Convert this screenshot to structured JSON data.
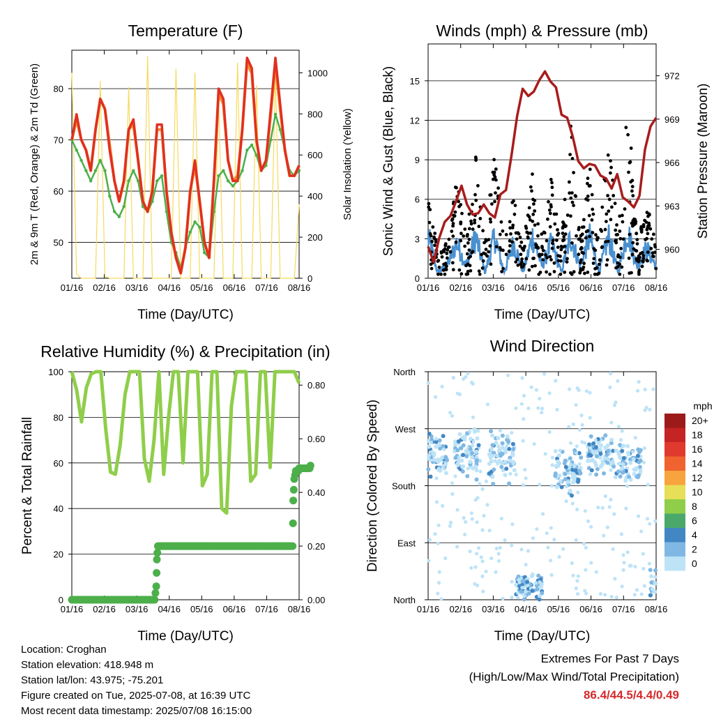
{
  "chart_data": [
    {
      "type": "line",
      "title": "Temperature (F)",
      "xlabel": "Time (Day/UTC)",
      "ylabel": "2m & 9m T (Red, Orange) & 2m Td (Green)",
      "y2label": "Solar Insolation (Yellow)",
      "x_ticks": [
        "01/16",
        "02/16",
        "03/16",
        "04/16",
        "05/16",
        "06/16",
        "07/16",
        "08/16"
      ],
      "y_ticks": [
        50,
        60,
        70,
        80
      ],
      "y2_ticks": [
        0,
        200,
        400,
        600,
        800,
        1000
      ],
      "ylim": [
        43,
        87.5
      ],
      "y2lim": [
        0,
        1110
      ],
      "grid": true,
      "series": [
        {
          "color": "#e03020",
          "values": [
            70,
            75,
            70,
            68,
            64,
            72,
            78,
            76,
            68,
            62,
            58,
            62,
            72,
            74,
            66,
            58,
            56,
            60,
            73,
            73,
            60,
            52,
            47,
            44,
            49,
            60,
            66,
            58,
            50,
            47,
            62,
            80,
            78,
            66,
            62,
            62,
            72,
            86,
            84,
            70,
            64,
            66,
            76,
            86,
            77,
            68,
            63,
            63,
            65
          ]
        },
        {
          "color": "#f28a30",
          "values": [
            70,
            74,
            70,
            68,
            64,
            72,
            78,
            76,
            69,
            62,
            58,
            62,
            72,
            73,
            66,
            58,
            56,
            60,
            72,
            72,
            60,
            52,
            47,
            44,
            49,
            60,
            65,
            58,
            50,
            47,
            62,
            79,
            77,
            66,
            62,
            63,
            72,
            85,
            83,
            70,
            64,
            66,
            75,
            85,
            76,
            68,
            63,
            63,
            65
          ]
        },
        {
          "color": "#4caf4a",
          "values": [
            70,
            68,
            66,
            64,
            62,
            64,
            66,
            64,
            59,
            56,
            55,
            57,
            62,
            64,
            62,
            57,
            56,
            58,
            62,
            63,
            56,
            50,
            48,
            45,
            49,
            52,
            54,
            53,
            48,
            47,
            56,
            63,
            64,
            62,
            61,
            62,
            64,
            68,
            69,
            67,
            64,
            65,
            70,
            75,
            72,
            68,
            64,
            63,
            64
          ]
        },
        {
          "color": "#f7d95c",
          "values": [
            1000,
            20,
            0,
            0,
            0,
            0,
            960,
            10,
            0,
            0,
            0,
            0,
            930,
            0,
            0,
            0,
            1080,
            0,
            0,
            0,
            0,
            0,
            1020,
            0,
            0,
            0,
            1000,
            0,
            0,
            0,
            0,
            880,
            0,
            0,
            0,
            1050,
            0,
            0,
            0,
            940,
            0,
            0,
            0,
            1000,
            0,
            0,
            0,
            0,
            360
          ]
        }
      ]
    },
    {
      "type": "scatter",
      "title": "Winds (mph) & Pressure (mb)",
      "xlabel": "Time (Day/UTC)",
      "ylabel": "Sonic Wind & Gust (Blue, Black)",
      "y2label": "Station Pressure (Maroon)",
      "x_ticks": [
        "01/16",
        "02/16",
        "03/16",
        "04/16",
        "05/16",
        "06/16",
        "07/16",
        "08/16"
      ],
      "y_ticks": [
        0,
        3,
        6,
        9,
        12,
        15
      ],
      "y2_ticks": [
        960,
        963,
        966,
        969,
        972
      ],
      "ylim": [
        0,
        17.8
      ],
      "y2lim": [
        958,
        974.2
      ],
      "grid": true,
      "pressure": {
        "color": "#a81c1c",
        "values": [
          960.2,
          959.1,
          960.8,
          961.9,
          962.3,
          963.3,
          964.4,
          963.1,
          962.4,
          962.5,
          963.1,
          962.5,
          962.2,
          963.8,
          964.1,
          966.5,
          969.2,
          971.1,
          970.6,
          970.9,
          971.7,
          972.3,
          971.6,
          971.2,
          969.3,
          969.1,
          967.8,
          966.1,
          965.6,
          965.9,
          965.8,
          965.1,
          964.9,
          964.2,
          965.2,
          963.6,
          963.3,
          962.9,
          963.7,
          966.9,
          968.5,
          969.1
        ]
      },
      "gust_color": "#000000",
      "wind_color": "#4a90d0",
      "gust_envelope_mph": [
        9.5,
        1.5,
        3,
        8.5,
        3.5,
        9.5,
        2.5,
        10,
        2.5,
        7,
        2,
        10,
        3,
        8,
        2.5,
        12,
        3,
        9,
        2.5,
        12,
        3,
        14,
        3,
        6,
        2.5
      ],
      "wind_envelope_mph": [
        3.5,
        0.5,
        1,
        3,
        1,
        3.5,
        0.5,
        3.5,
        0.5,
        3,
        0.5,
        3.5,
        1,
        3,
        0.5,
        3.5,
        1,
        3.5,
        0.5,
        3.5,
        0.5,
        4,
        1,
        2.5,
        1
      ]
    },
    {
      "type": "line",
      "title": "Relative Humidity (%) & Precipitation (in)",
      "xlabel": "Time (Day/UTC)",
      "ylabel": "Percent & Total Rainfall",
      "x_ticks": [
        "01/16",
        "02/16",
        "03/16",
        "04/16",
        "05/16",
        "06/16",
        "07/16",
        "08/16"
      ],
      "y_ticks": [
        0,
        20,
        40,
        60,
        80,
        100
      ],
      "y2_ticks": [
        "0.00",
        "0.20",
        "0.40",
        "0.60",
        "0.80"
      ],
      "ylim": [
        0,
        100
      ],
      "y2lim": [
        0,
        0.85
      ],
      "grid": true,
      "rh": {
        "color": "#8fce4a",
        "values": [
          100,
          92,
          78,
          93,
          99,
          100,
          100,
          75,
          56,
          55,
          68,
          90,
          100,
          100,
          100,
          62,
          52,
          70,
          100,
          55,
          80,
          100,
          100,
          60,
          100,
          100,
          100,
          50,
          55,
          100,
          100,
          40,
          38,
          85,
          100,
          100,
          100,
          52,
          55,
          100,
          100,
          58,
          100,
          100,
          100,
          100,
          100,
          95
        ]
      },
      "precip": {
        "color": "#4caf4a",
        "points": [
          [
            0.0,
            0.0
          ],
          [
            1.0,
            0.0
          ],
          [
            2.0,
            0.0
          ],
          [
            2.55,
            0.0
          ],
          [
            2.6,
            0.05
          ],
          [
            2.62,
            0.15
          ],
          [
            2.65,
            0.2
          ],
          [
            3.0,
            0.2
          ],
          [
            4.0,
            0.2
          ],
          [
            5.0,
            0.2
          ],
          [
            6.0,
            0.2
          ],
          [
            6.8,
            0.2
          ],
          [
            6.82,
            0.37
          ],
          [
            6.85,
            0.45
          ],
          [
            6.9,
            0.48
          ],
          [
            7.0,
            0.49
          ],
          [
            7.35,
            0.5
          ]
        ]
      }
    },
    {
      "type": "scatter",
      "title": "Wind Direction",
      "xlabel": "Time (Day/UTC)",
      "ylabel": "Direction (Colored By Speed)",
      "x_ticks": [
        "01/16",
        "02/16",
        "03/16",
        "04/16",
        "05/16",
        "06/16",
        "07/16",
        "08/16"
      ],
      "y_ticks": [
        "North",
        "East",
        "South",
        "West",
        "North"
      ],
      "ylim": [
        0,
        360
      ],
      "grid": true,
      "legend_title": "mph",
      "legend_position": "right",
      "legend_labels": [
        "20+",
        "18",
        "16",
        "14",
        "12",
        "10",
        "8",
        "6",
        "4",
        "2",
        "0"
      ],
      "legend_colors": [
        "#9c1a1a",
        "#c42424",
        "#e0392e",
        "#f0632f",
        "#f7a33e",
        "#e6df57",
        "#8fce4a",
        "#4aa86a",
        "#4287c4",
        "#80b8e3",
        "#bde3f7"
      ],
      "clusters": [
        {
          "day": 0.2,
          "dir": 230,
          "spread": 40
        },
        {
          "day": 1.2,
          "dir": 230,
          "spread": 45
        },
        {
          "day": 2.25,
          "dir": 225,
          "spread": 45
        },
        {
          "day": 3.1,
          "dir": 20,
          "spread": 25
        },
        {
          "day": 4.3,
          "dir": 200,
          "spread": 40
        },
        {
          "day": 5.3,
          "dir": 230,
          "spread": 35
        },
        {
          "day": 6.15,
          "dir": 215,
          "spread": 35
        },
        {
          "day": 7.2,
          "dir": 20,
          "spread": 30
        }
      ]
    }
  ],
  "info": {
    "location": "Location: Croghan",
    "elevation": "Station elevation: 418.948 m",
    "latlon": "Station lat/lon: 43.975; -75.201",
    "created": "Figure created on Tue, 2025-07-08, at 16:39 UTC",
    "recent": "Most recent data timestamp: 2025/07/08 16:15:00"
  },
  "extremes": {
    "line1": "Extremes For Past 7 Days",
    "line2": "(High/Low/Max Wind/Total Precipitation)",
    "values": "86.4/44.5/4.4/0.49",
    "values_color": "#d42a2a"
  }
}
